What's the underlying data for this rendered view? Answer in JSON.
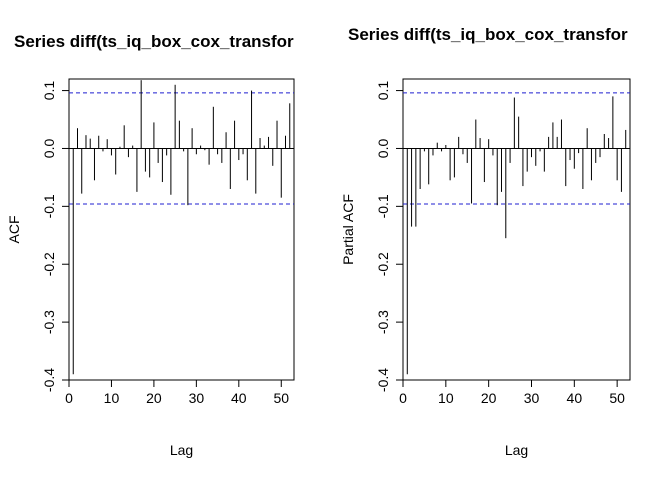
{
  "chart_data": [
    {
      "type": "bar",
      "title": "Series diff(ts_iq_box_cox_transfor",
      "xlabel": "Lag",
      "ylabel": "ACF",
      "xlim": [
        0,
        53
      ],
      "ylim": [
        -0.4,
        0.12
      ],
      "xticks": [
        0,
        10,
        20,
        30,
        40,
        50
      ],
      "yticks": [
        -0.4,
        -0.3,
        -0.2,
        -0.1,
        0.0,
        0.1
      ],
      "ci": [
        0.096,
        -0.096
      ],
      "lags": [
        1,
        2,
        3,
        4,
        5,
        6,
        7,
        8,
        9,
        10,
        11,
        12,
        13,
        14,
        15,
        16,
        17,
        18,
        19,
        20,
        21,
        22,
        23,
        24,
        25,
        26,
        27,
        28,
        29,
        30,
        31,
        32,
        33,
        34,
        35,
        36,
        37,
        38,
        39,
        40,
        41,
        42,
        43,
        44,
        45,
        46,
        47,
        48,
        49,
        50,
        51,
        52
      ],
      "values": [
        -0.39,
        0.035,
        -0.078,
        0.023,
        0.017,
        -0.055,
        0.022,
        -0.005,
        0.016,
        -0.012,
        -0.045,
        0.003,
        0.04,
        -0.015,
        0.005,
        -0.075,
        0.118,
        -0.04,
        -0.05,
        0.045,
        -0.025,
        -0.058,
        -0.012,
        -0.08,
        0.11,
        0.048,
        -0.005,
        -0.098,
        0.035,
        -0.01,
        0.005,
        -0.003,
        -0.028,
        0.072,
        -0.01,
        -0.025,
        0.028,
        -0.07,
        0.048,
        -0.02,
        -0.01,
        -0.055,
        0.1,
        -0.078,
        0.018,
        0.005,
        0.02,
        -0.03,
        0.048,
        -0.085,
        0.022,
        0.078
      ]
    },
    {
      "type": "bar",
      "title": "Series  diff(ts_iq_box_cox_transfor",
      "xlabel": "Lag",
      "ylabel": "Partial ACF",
      "xlim": [
        0,
        53
      ],
      "ylim": [
        -0.4,
        0.12
      ],
      "xticks": [
        0,
        10,
        20,
        30,
        40,
        50
      ],
      "yticks": [
        -0.4,
        -0.3,
        -0.2,
        -0.1,
        0.0,
        0.1
      ],
      "ci": [
        0.096,
        -0.096
      ],
      "lags": [
        1,
        2,
        3,
        4,
        5,
        6,
        7,
        8,
        9,
        10,
        11,
        12,
        13,
        14,
        15,
        16,
        17,
        18,
        19,
        20,
        21,
        22,
        23,
        24,
        25,
        26,
        27,
        28,
        29,
        30,
        31,
        32,
        33,
        34,
        35,
        36,
        37,
        38,
        39,
        40,
        41,
        42,
        43,
        44,
        45,
        46,
        47,
        48,
        49,
        50,
        51,
        52
      ],
      "values": [
        -0.39,
        -0.135,
        -0.135,
        -0.07,
        -0.005,
        -0.062,
        -0.012,
        0.01,
        -0.005,
        0.006,
        -0.055,
        -0.05,
        0.02,
        -0.01,
        -0.025,
        -0.095,
        0.05,
        0.018,
        -0.058,
        0.016,
        -0.012,
        -0.098,
        -0.075,
        -0.155,
        -0.025,
        0.088,
        0.055,
        -0.065,
        -0.04,
        -0.015,
        -0.03,
        -0.005,
        -0.04,
        0.02,
        0.045,
        0.02,
        0.05,
        -0.065,
        -0.02,
        -0.035,
        -0.008,
        -0.07,
        0.035,
        -0.055,
        -0.025,
        -0.015,
        0.025,
        0.018,
        0.09,
        -0.055,
        -0.075,
        0.032
      ]
    }
  ]
}
